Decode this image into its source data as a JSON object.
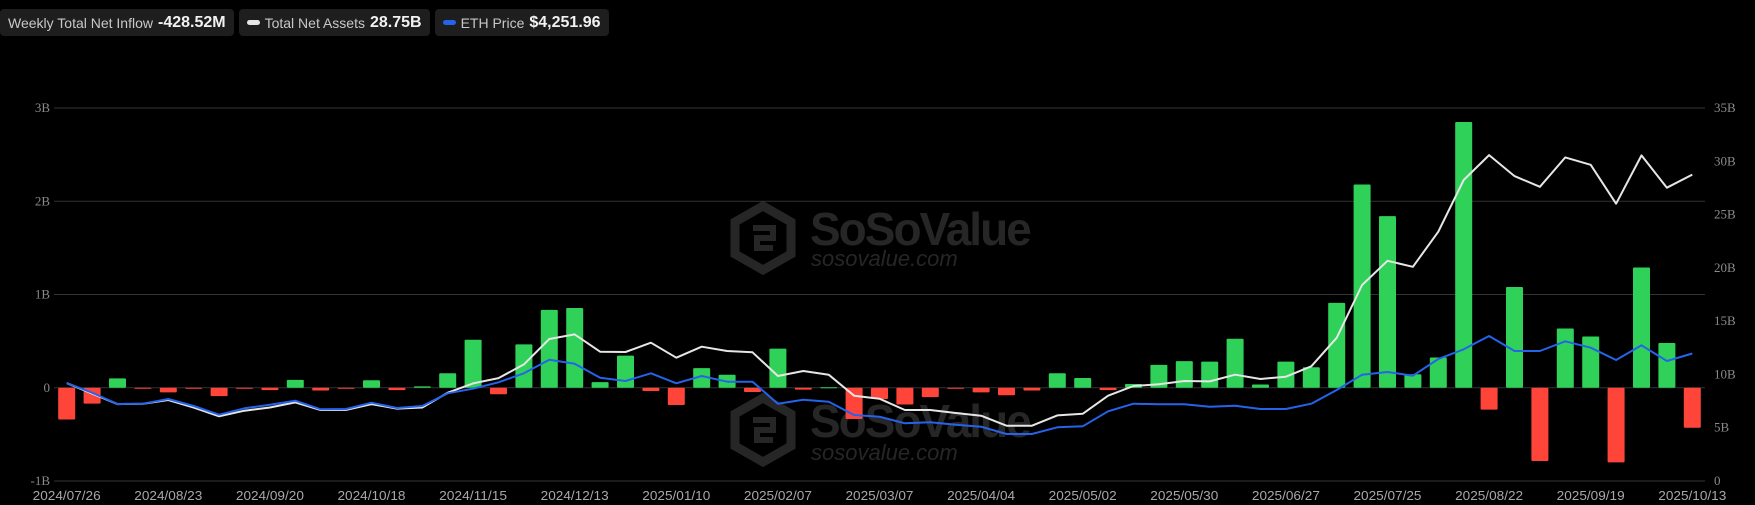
{
  "legend": [
    {
      "label": "Weekly Total Net Inflow",
      "value": "-428.52M",
      "icon": "none"
    },
    {
      "label": "Total Net Assets",
      "value": "28.75B",
      "icon": "white-line-swatch",
      "color": "#e6e6e6"
    },
    {
      "label": "ETH Price",
      "value": "$4,251.96",
      "icon": "blue-line-swatch",
      "color": "#2563eb"
    }
  ],
  "watermark": {
    "brand": "SoSoValue",
    "site": "sosovalue.com"
  },
  "colors": {
    "background": "#000000",
    "positive": "#30d158",
    "negative": "#ff453a",
    "assets_line": "#e6e6e6",
    "eth_line": "#2563eb",
    "grid": "#333333"
  },
  "chart_data": {
    "type": "bar+line",
    "left_axis": {
      "ticks": [
        "3B",
        "2B",
        "1B",
        "0",
        "-1B"
      ],
      "tick_values": [
        3,
        2,
        1,
        0,
        -1
      ],
      "range": [
        -1,
        3
      ],
      "unit": "B"
    },
    "right_axis": {
      "ticks": [
        "35B",
        "30B",
        "25B",
        "20B",
        "15B",
        "10B",
        "5B",
        "0"
      ],
      "tick_values": [
        35,
        30,
        25,
        20,
        15,
        10,
        5,
        0
      ],
      "range": [
        0,
        35
      ],
      "unit": "B"
    },
    "eth_axis": {
      "range": [
        0,
        12440
      ],
      "visible": false,
      "unit": "USD"
    },
    "x_tick_labels": [
      "2024/07/26",
      "2024/08/23",
      "2024/09/20",
      "2024/10/18",
      "2024/11/15",
      "2024/12/13",
      "2025/01/10",
      "2025/02/07",
      "2025/03/07",
      "2025/04/04",
      "2025/05/02",
      "2025/05/30",
      "2025/06/27",
      "2025/07/25",
      "2025/08/22",
      "2025/09/19",
      "2025/10/13"
    ],
    "x_tick_every_n_weeks": 4,
    "grid": true,
    "series": [
      {
        "name": "Weekly Total Net Inflow",
        "type": "bar",
        "axis": "left",
        "unit": "B",
        "values": [
          -0.34,
          -0.17,
          0.1,
          -0.01,
          -0.05,
          -0.01,
          -0.09,
          -0.01,
          -0.025,
          0.085,
          -0.03,
          -0.005,
          0.08,
          -0.025,
          0.015,
          0.155,
          0.515,
          -0.07,
          0.465,
          0.835,
          0.855,
          0.06,
          0.345,
          -0.035,
          -0.185,
          0.21,
          0.14,
          -0.045,
          0.42,
          -0.02,
          0.005,
          -0.335,
          -0.12,
          -0.18,
          -0.1,
          -0.01,
          -0.05,
          -0.08,
          -0.03,
          0.155,
          0.105,
          -0.025,
          0.04,
          0.245,
          0.285,
          0.28,
          0.525,
          0.035,
          0.28,
          0.22,
          0.91,
          2.18,
          1.84,
          0.145,
          0.325,
          2.85,
          -0.235,
          1.08,
          -0.786,
          0.635,
          0.55,
          -0.8,
          1.29,
          0.48,
          -0.42852
        ]
      },
      {
        "name": "Total Net Assets",
        "type": "line",
        "axis": "right",
        "unit": "B",
        "values": [
          9.19,
          8.2,
          7.22,
          7.25,
          7.6,
          6.9,
          6.07,
          6.6,
          6.9,
          7.38,
          6.66,
          6.67,
          7.22,
          6.79,
          6.9,
          8.29,
          9.16,
          9.66,
          10.94,
          13.32,
          13.76,
          12.13,
          12.1,
          12.98,
          11.57,
          12.6,
          12.2,
          12.08,
          9.85,
          10.32,
          9.97,
          8.0,
          7.72,
          6.66,
          6.66,
          6.38,
          6.13,
          5.19,
          5.19,
          6.16,
          6.31,
          8.0,
          8.91,
          9.07,
          9.38,
          9.35,
          9.97,
          9.57,
          9.79,
          10.76,
          13.44,
          18.39,
          20.66,
          20.1,
          23.39,
          28.24,
          30.58,
          28.61,
          27.61,
          30.36,
          29.67,
          26.02,
          30.55,
          27.52,
          28.75
        ]
      },
      {
        "name": "ETH Price",
        "type": "line",
        "axis": "eth",
        "unit": "USD",
        "values": [
          3268,
          2945,
          2568,
          2579,
          2735,
          2501,
          2212,
          2424,
          2546,
          2679,
          2390,
          2401,
          2612,
          2435,
          2501,
          2924,
          3079,
          3291,
          3591,
          4046,
          3913,
          3446,
          3335,
          3591,
          3257,
          3502,
          3313,
          3313,
          2579,
          2712,
          2646,
          2201,
          2146,
          1923,
          1957,
          1879,
          1812,
          1567,
          1567,
          1790,
          1823,
          2323,
          2579,
          2557,
          2557,
          2479,
          2512,
          2401,
          2401,
          2579,
          3035,
          3546,
          3635,
          3513,
          4069,
          4391,
          4836,
          4336,
          4336,
          4658,
          4447,
          4036,
          4525,
          4002,
          4251.96
        ]
      }
    ]
  }
}
